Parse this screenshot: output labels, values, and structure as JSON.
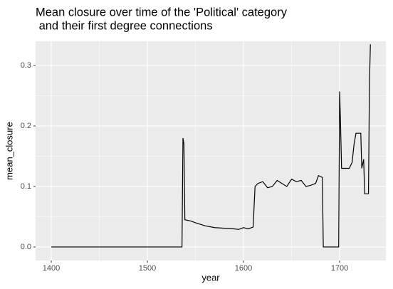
{
  "chart_data": {
    "type": "line",
    "title": [
      "Mean closure over time of the 'Political' category",
      " and their first degree connections"
    ],
    "x_label": "year",
    "y_label": "mean_closure",
    "x": [
      1400,
      1536,
      1537,
      1538,
      1539,
      1545,
      1550,
      1560,
      1570,
      1580,
      1590,
      1595,
      1600,
      1605,
      1610,
      1612,
      1615,
      1620,
      1625,
      1630,
      1635,
      1640,
      1645,
      1650,
      1655,
      1660,
      1665,
      1670,
      1675,
      1678,
      1682,
      1683,
      1699,
      1700,
      1701,
      1702,
      1710,
      1713,
      1715,
      1717,
      1722,
      1723,
      1725,
      1726,
      1730,
      1731,
      1732
    ],
    "values": [
      0,
      0,
      0.18,
      0.17,
      0.045,
      0.043,
      0.04,
      0.035,
      0.032,
      0.031,
      0.03,
      0.029,
      0.032,
      0.03,
      0.033,
      0.1,
      0.105,
      0.108,
      0.098,
      0.1,
      0.11,
      0.105,
      0.1,
      0.112,
      0.108,
      0.11,
      0.1,
      0.102,
      0.105,
      0.118,
      0.115,
      0,
      0,
      0.257,
      0.2,
      0.13,
      0.13,
      0.14,
      0.17,
      0.188,
      0.188,
      0.13,
      0.145,
      0.088,
      0.088,
      0.27,
      0.335
    ],
    "color": "#000000",
    "xlim": [
      1383.7,
      1748.1
    ],
    "ylim": [
      -0.0224,
      0.34
    ],
    "xticks": [
      1400,
      1500,
      1600,
      1700
    ],
    "yticks": [
      {
        "value": 0,
        "label": "0.0"
      },
      0.1,
      0.2,
      0.3
    ],
    "x_minor_ticks": [
      1450,
      1550,
      1650
    ],
    "y_minor_ticks": [
      0.05,
      0.15,
      0.25
    ],
    "grid": true
  }
}
